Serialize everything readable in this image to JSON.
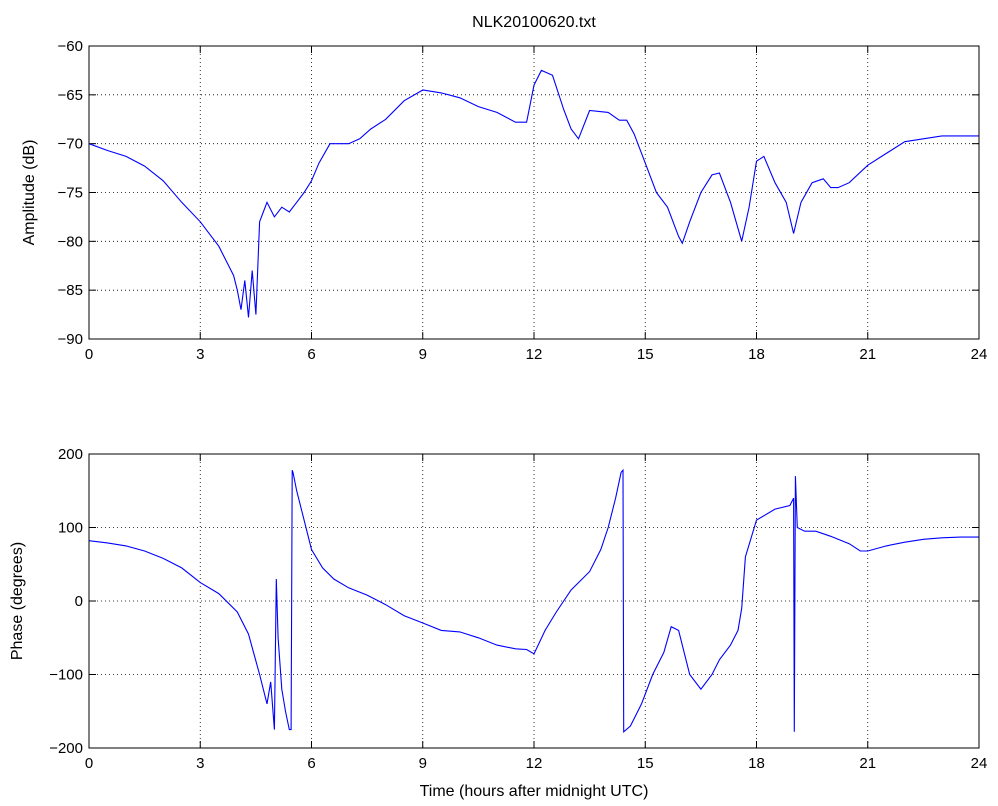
{
  "figure_title": "NLK20100620.txt",
  "chart_data": [
    {
      "type": "line",
      "name": "amplitude-plot",
      "title": "NLK20100620.txt",
      "xlabel": "",
      "ylabel": "Amplitude (dB)",
      "xlim": [
        0,
        24
      ],
      "ylim": [
        -90,
        -60
      ],
      "xticks": [
        0,
        3,
        6,
        9,
        12,
        15,
        18,
        21,
        24
      ],
      "yticks": [
        -60,
        -65,
        -70,
        -75,
        -80,
        -85,
        -90
      ],
      "grid": true,
      "line_color": "#0000ff",
      "series": [
        {
          "x": [
            0,
            0.5,
            1,
            1.5,
            2,
            2.5,
            3,
            3.3,
            3.5,
            3.7,
            3.9,
            4.0,
            4.1,
            4.2,
            4.3,
            4.4,
            4.5,
            4.6,
            4.7,
            4.8,
            5.0,
            5.2,
            5.4,
            5.6,
            5.8,
            6.0,
            6.2,
            6.5,
            7.0,
            7.3,
            7.6,
            8.0,
            8.5,
            9.0,
            9.5,
            10.0,
            10.5,
            11.0,
            11.5,
            11.8,
            12.0,
            12.2,
            12.5,
            12.8,
            13.0,
            13.2,
            13.5,
            14.0,
            14.3,
            14.5,
            14.7,
            15.0,
            15.3,
            15.6,
            15.9,
            16.0,
            16.2,
            16.5,
            16.8,
            17.0,
            17.3,
            17.6,
            17.8,
            18.0,
            18.2,
            18.5,
            18.8,
            19.0,
            19.2,
            19.5,
            19.8,
            20.0,
            20.2,
            20.5,
            21.0,
            21.5,
            22.0,
            23.0,
            24.0
          ],
          "y": [
            -70,
            -70.7,
            -71.3,
            -72.3,
            -73.8,
            -76,
            -78,
            -79.5,
            -80.5,
            -82,
            -83.5,
            -85,
            -87,
            -84,
            -87.8,
            -83,
            -87.5,
            -78,
            -77,
            -76,
            -77.5,
            -76.5,
            -77,
            -76,
            -75,
            -73.8,
            -72,
            -70,
            -70,
            -69.5,
            -68.5,
            -67.5,
            -65.6,
            -64.5,
            -64.8,
            -65.3,
            -66.2,
            -66.8,
            -67.8,
            -67.8,
            -64,
            -62.5,
            -63,
            -66.5,
            -68.5,
            -69.5,
            -66.6,
            -66.8,
            -67.6,
            -67.6,
            -69,
            -72,
            -75,
            -76.5,
            -79.5,
            -80.2,
            -78,
            -75,
            -73.2,
            -73,
            -76,
            -80,
            -76.5,
            -71.8,
            -71.3,
            -74,
            -76,
            -79.2,
            -76,
            -74,
            -73.6,
            -74.5,
            -74.5,
            -74,
            -72.2,
            -71,
            -69.8,
            -69.2,
            -69.2
          ]
        }
      ]
    },
    {
      "type": "line",
      "name": "phase-plot",
      "title": "",
      "xlabel": "Time (hours after midnight UTC)",
      "ylabel": "Phase (degrees)",
      "xlim": [
        0,
        24
      ],
      "ylim": [
        -200,
        200
      ],
      "xticks": [
        0,
        3,
        6,
        9,
        12,
        15,
        18,
        21,
        24
      ],
      "yticks": [
        200,
        100,
        0,
        -100,
        -200
      ],
      "grid": true,
      "line_color": "#0000ff",
      "series": [
        {
          "x": [
            0,
            0.5,
            1,
            1.5,
            2,
            2.5,
            3,
            3.5,
            4.0,
            4.3,
            4.6,
            4.8,
            4.9,
            5.0,
            5.05,
            5.1,
            5.2,
            5.3,
            5.4,
            5.45,
            5.48,
            5.5,
            5.6,
            5.8,
            6.0,
            6.3,
            6.6,
            7.0,
            7.5,
            8.0,
            8.5,
            9.0,
            9.5,
            10.0,
            10.5,
            11.0,
            11.5,
            11.8,
            12.0,
            12.3,
            12.6,
            13.0,
            13.5,
            13.8,
            14.0,
            14.2,
            14.35,
            14.4,
            14.42,
            14.6,
            14.9,
            15.2,
            15.5,
            15.7,
            15.9,
            16.0,
            16.2,
            16.5,
            16.8,
            17.0,
            17.3,
            17.5,
            17.6,
            17.7,
            18.0,
            18.5,
            18.9,
            19.0,
            19.02,
            19.05,
            19.1,
            19.3,
            19.6,
            20.0,
            20.5,
            20.8,
            21.0,
            21.5,
            22.0,
            22.5,
            23.0,
            23.5,
            24.0
          ],
          "y": [
            82,
            79,
            75,
            68,
            58,
            45,
            25,
            10,
            -15,
            -45,
            -100,
            -140,
            -110,
            -175,
            30,
            -50,
            -120,
            -150,
            -175,
            -175,
            178,
            175,
            150,
            110,
            70,
            45,
            30,
            18,
            8,
            -5,
            -20,
            -30,
            -40,
            -42,
            -50,
            -60,
            -65,
            -66,
            -72,
            -40,
            -15,
            15,
            40,
            70,
            100,
            140,
            175,
            178,
            -178,
            -170,
            -140,
            -100,
            -70,
            -35,
            -40,
            -60,
            -100,
            -120,
            -100,
            -80,
            -60,
            -40,
            -10,
            60,
            110,
            125,
            130,
            140,
            -178,
            170,
            100,
            95,
            95,
            88,
            78,
            68,
            68,
            75,
            80,
            84,
            86,
            87,
            87
          ]
        }
      ]
    }
  ]
}
